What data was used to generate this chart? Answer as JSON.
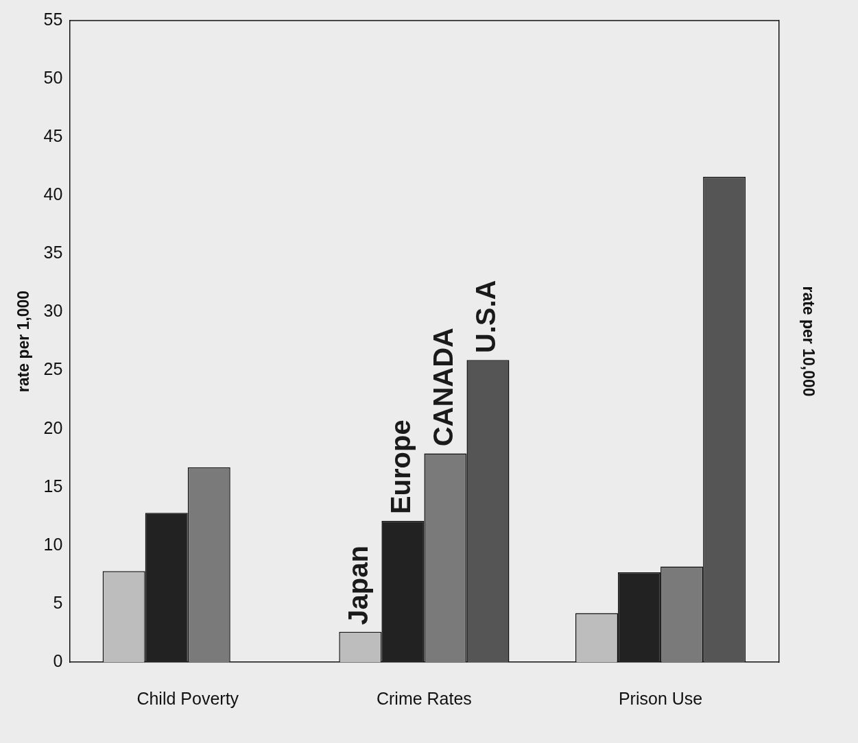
{
  "chart_data": {
    "type": "bar",
    "ylabel": "rate per 1,000",
    "y2label": "rate per 10,000",
    "categories": [
      "Child Poverty",
      "Crime Rates",
      "Prison Use"
    ],
    "series": [
      {
        "name": "Japan",
        "color": "#bdbdbd",
        "values": [
          7.8,
          2.6,
          4.2
        ]
      },
      {
        "name": "Europe",
        "color": "#222222",
        "values": [
          12.8,
          12.1,
          7.7
        ]
      },
      {
        "name": "CANADA",
        "color": "#7a7a7a",
        "values": [
          16.7,
          17.9,
          8.2
        ]
      },
      {
        "name": "U.S.A",
        "color": "#555555",
        "values": [
          null,
          25.9,
          41.6
        ]
      }
    ],
    "ylim": [
      0,
      55
    ],
    "yticks": [
      0,
      5,
      10,
      15,
      20,
      25,
      30,
      35,
      40,
      45,
      50,
      55
    ],
    "grid": false
  }
}
